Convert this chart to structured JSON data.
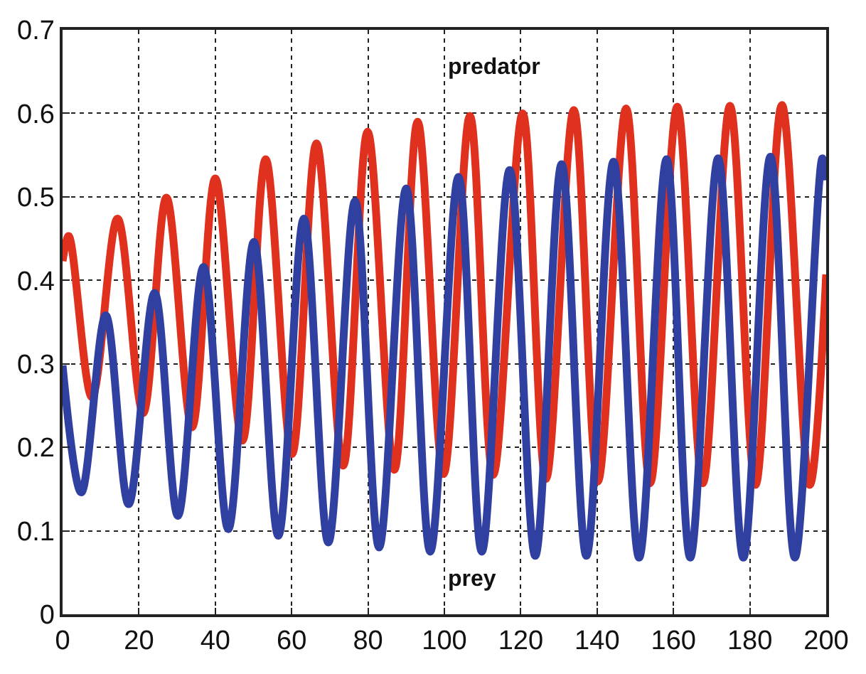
{
  "chart_data": {
    "type": "line",
    "xlim": [
      0,
      200
    ],
    "ylim": [
      0,
      0.7
    ],
    "xticks": [
      0,
      20,
      40,
      60,
      80,
      100,
      120,
      140,
      160,
      180,
      200
    ],
    "yticks": [
      0,
      0.1,
      0.2,
      0.3,
      0.4,
      0.5,
      0.6,
      0.7
    ],
    "grid": true,
    "legend": false,
    "marker": "none",
    "line_style": "solid",
    "series": [
      {
        "name": "predator",
        "color": "#e0301e",
        "x": [
          0,
          1.6,
          7.7,
          14.4,
          21.1,
          27.2,
          33.9,
          40,
          47.1,
          53.2,
          60.1,
          66.5,
          73.5,
          79.9,
          86.9,
          93,
          99.8,
          106.7,
          112.8,
          120.5,
          126.6,
          133.9,
          140.2,
          147.6,
          153.9,
          161,
          167.7,
          174.8,
          181.5,
          188.4,
          195.7,
          200
        ],
        "values": [
          0.423,
          0.453,
          0.26,
          0.474,
          0.241,
          0.499,
          0.224,
          0.522,
          0.208,
          0.545,
          0.192,
          0.564,
          0.178,
          0.578,
          0.173,
          0.59,
          0.168,
          0.597,
          0.167,
          0.6,
          0.162,
          0.604,
          0.159,
          0.606,
          0.157,
          0.608,
          0.157,
          0.609,
          0.155,
          0.61,
          0.155,
          0.407
        ]
      },
      {
        "name": "prey",
        "color": "#3040a0",
        "x": [
          0,
          4.9,
          11.3,
          17.3,
          24.1,
          30.2,
          36.9,
          43.4,
          50.1,
          56.5,
          63.2,
          69.6,
          76.6,
          82.9,
          90,
          96.3,
          103.7,
          109.8,
          117.1,
          123.8,
          130.7,
          137.2,
          144.3,
          151,
          158.2,
          164.4,
          171.7,
          178.3,
          185.4,
          191.8,
          199,
          200
        ],
        "values": [
          0.298,
          0.146,
          0.358,
          0.132,
          0.385,
          0.118,
          0.416,
          0.102,
          0.446,
          0.094,
          0.474,
          0.086,
          0.495,
          0.08,
          0.51,
          0.075,
          0.524,
          0.075,
          0.532,
          0.07,
          0.539,
          0.07,
          0.542,
          0.068,
          0.545,
          0.068,
          0.546,
          0.068,
          0.548,
          0.068,
          0.546,
          0.52
        ]
      }
    ]
  }
}
